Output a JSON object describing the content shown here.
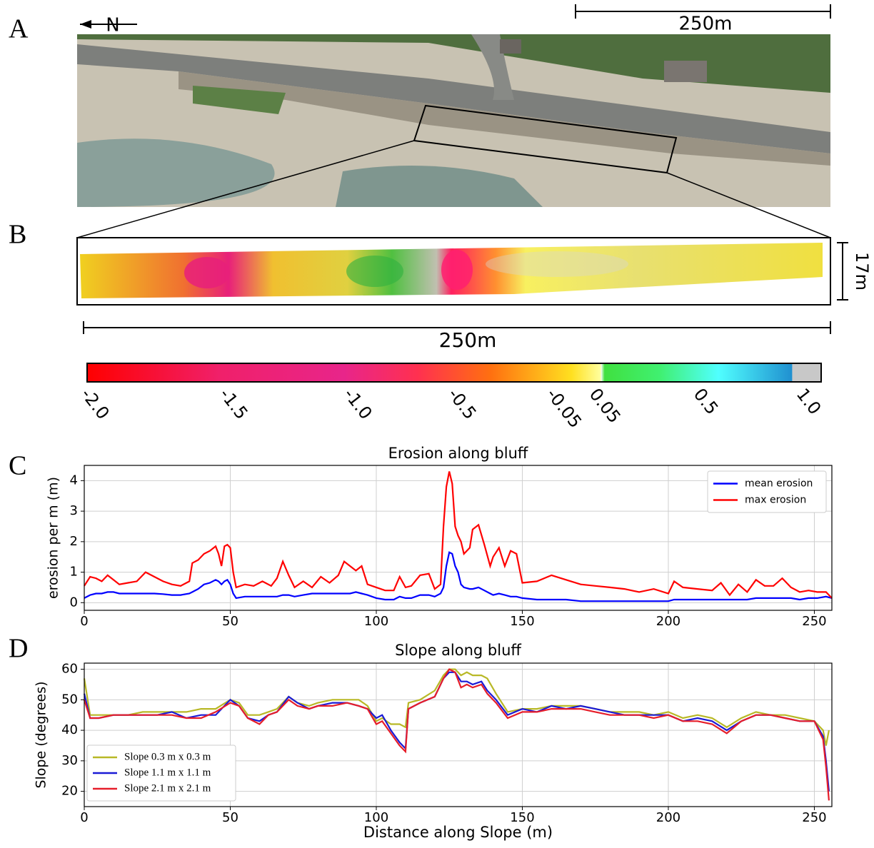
{
  "labels": {
    "a": "A",
    "b": "B",
    "c": "C",
    "d": "D"
  },
  "north": "N",
  "scale_top": "250m",
  "scale_b": "250m",
  "scale_height": "17m",
  "colorbar": {
    "ticks": [
      "-2.0",
      "-1.5",
      "-1.0",
      "-0.5",
      "-0.05",
      "0.05",
      "0.5",
      "1.0"
    ]
  },
  "chart_data": [
    {
      "type": "line",
      "title": "Erosion along bluff",
      "ylabel": "erosion per m (m)",
      "x": [
        0,
        2,
        4,
        6,
        8,
        10,
        12,
        15,
        18,
        21,
        24,
        27,
        30,
        33,
        36,
        37,
        39,
        41,
        43,
        45,
        46,
        47,
        48,
        49,
        50,
        51,
        52,
        55,
        58,
        61,
        64,
        66,
        68,
        70,
        72,
        75,
        78,
        81,
        84,
        87,
        89,
        91,
        93,
        95,
        97,
        100,
        103,
        106,
        108,
        110,
        112,
        115,
        118,
        120,
        122,
        123,
        124,
        125,
        126,
        127,
        128,
        129,
        130,
        132,
        133,
        135,
        137,
        139,
        140,
        142,
        144,
        146,
        148,
        150,
        155,
        160,
        165,
        170,
        175,
        180,
        185,
        190,
        195,
        200,
        202,
        205,
        210,
        215,
        218,
        221,
        224,
        227,
        230,
        233,
        236,
        239,
        242,
        245,
        248,
        251,
        254,
        256
      ],
      "series": [
        {
          "name": "mean erosion",
          "color": "#0000ff",
          "values": [
            0.15,
            0.25,
            0.3,
            0.3,
            0.35,
            0.35,
            0.3,
            0.3,
            0.3,
            0.3,
            0.3,
            0.28,
            0.25,
            0.25,
            0.3,
            0.35,
            0.45,
            0.6,
            0.65,
            0.75,
            0.7,
            0.6,
            0.7,
            0.75,
            0.6,
            0.3,
            0.15,
            0.2,
            0.2,
            0.2,
            0.2,
            0.2,
            0.25,
            0.25,
            0.2,
            0.25,
            0.3,
            0.3,
            0.3,
            0.3,
            0.3,
            0.3,
            0.35,
            0.3,
            0.25,
            0.15,
            0.1,
            0.1,
            0.2,
            0.15,
            0.15,
            0.25,
            0.25,
            0.2,
            0.3,
            0.5,
            1.2,
            1.65,
            1.6,
            1.2,
            1.0,
            0.6,
            0.5,
            0.45,
            0.45,
            0.5,
            0.4,
            0.3,
            0.25,
            0.3,
            0.25,
            0.2,
            0.2,
            0.15,
            0.1,
            0.1,
            0.1,
            0.05,
            0.05,
            0.05,
            0.05,
            0.05,
            0.05,
            0.05,
            0.1,
            0.1,
            0.1,
            0.1,
            0.1,
            0.1,
            0.1,
            0.1,
            0.15,
            0.15,
            0.15,
            0.15,
            0.15,
            0.1,
            0.15,
            0.15,
            0.2,
            0.15
          ]
        },
        {
          "name": "max erosion",
          "color": "#ff0000",
          "values": [
            0.55,
            0.85,
            0.8,
            0.7,
            0.9,
            0.75,
            0.6,
            0.65,
            0.7,
            1.0,
            0.85,
            0.7,
            0.6,
            0.55,
            0.7,
            1.3,
            1.4,
            1.6,
            1.7,
            1.85,
            1.6,
            1.2,
            1.85,
            1.9,
            1.8,
            1.0,
            0.5,
            0.6,
            0.55,
            0.7,
            0.55,
            0.8,
            1.35,
            0.9,
            0.5,
            0.7,
            0.5,
            0.85,
            0.65,
            0.9,
            1.35,
            1.2,
            1.05,
            1.2,
            0.6,
            0.5,
            0.4,
            0.4,
            0.85,
            0.5,
            0.55,
            0.9,
            0.95,
            0.45,
            0.6,
            2.5,
            3.8,
            4.3,
            3.9,
            2.5,
            2.2,
            2.0,
            1.6,
            1.8,
            2.4,
            2.55,
            1.9,
            1.2,
            1.5,
            1.8,
            1.2,
            1.7,
            1.6,
            0.65,
            0.7,
            0.9,
            0.75,
            0.6,
            0.55,
            0.5,
            0.45,
            0.35,
            0.45,
            0.3,
            0.7,
            0.5,
            0.45,
            0.4,
            0.65,
            0.25,
            0.6,
            0.35,
            0.75,
            0.55,
            0.55,
            0.8,
            0.5,
            0.35,
            0.4,
            0.35,
            0.35,
            0.15
          ]
        }
      ],
      "xlim": [
        0,
        256
      ],
      "ylim": [
        -0.25,
        4.5
      ],
      "xticks": [
        0,
        50,
        100,
        150,
        200,
        250
      ],
      "yticks": [
        0,
        1,
        2,
        3,
        4
      ],
      "grid": true,
      "legend": "upper right"
    },
    {
      "type": "line",
      "title": "Slope along bluff",
      "xlabel": "Distance along Slope (m)",
      "ylabel": "Slope (degrees)",
      "x": [
        0,
        2,
        5,
        10,
        15,
        20,
        25,
        30,
        35,
        40,
        45,
        50,
        53,
        56,
        60,
        63,
        66,
        70,
        73,
        77,
        80,
        85,
        90,
        94,
        97,
        100,
        102,
        105,
        108,
        110,
        111,
        115,
        120,
        123,
        125,
        127,
        129,
        131,
        133,
        136,
        138,
        141,
        145,
        150,
        155,
        160,
        165,
        170,
        175,
        180,
        185,
        190,
        195,
        200,
        205,
        210,
        215,
        220,
        225,
        230,
        235,
        240,
        245,
        250,
        253,
        254,
        255
      ],
      "series": [
        {
          "name": "Slope 0.3 m x 0.3 m",
          "color": "#b8b826",
          "values": [
            57,
            45,
            45,
            45,
            45,
            46,
            46,
            46,
            46,
            47,
            47,
            50,
            49,
            45,
            45,
            46,
            47,
            51,
            49,
            48,
            49,
            50,
            50,
            50,
            48,
            43,
            44,
            42,
            42,
            41,
            49,
            50,
            53,
            58,
            60,
            60,
            58,
            59,
            58,
            58,
            57,
            52,
            46,
            47,
            47,
            48,
            48,
            48,
            47,
            46,
            46,
            46,
            45,
            46,
            44,
            45,
            44,
            41,
            44,
            46,
            45,
            45,
            44,
            43,
            40,
            35,
            40
          ]
        },
        {
          "name": "Slope 1.1 m x 1.1 m",
          "color": "#1a1ad6",
          "values": [
            52,
            44,
            44,
            45,
            45,
            45,
            45,
            46,
            44,
            45,
            45,
            50,
            48,
            44,
            43,
            45,
            46,
            51,
            49,
            47,
            48,
            49,
            49,
            48,
            47,
            44,
            45,
            40,
            36,
            34,
            47,
            49,
            51,
            57,
            59,
            59,
            56,
            56,
            55,
            56,
            53,
            50,
            45,
            47,
            46,
            48,
            47,
            48,
            47,
            46,
            45,
            45,
            45,
            45,
            43,
            44,
            43,
            40,
            43,
            45,
            45,
            44,
            43,
            43,
            38,
            30,
            20
          ]
        },
        {
          "name": "Slope 2.1 m x 2.1 m",
          "color": "#e61e2a",
          "values": [
            50,
            44,
            44,
            45,
            45,
            45,
            45,
            45,
            44,
            44,
            46,
            49,
            48,
            44,
            42,
            45,
            46,
            50,
            48,
            47,
            48,
            48,
            49,
            48,
            47,
            42,
            43,
            39,
            35,
            33,
            47,
            49,
            51,
            57,
            60,
            59,
            54,
            55,
            54,
            55,
            52,
            49,
            44,
            46,
            46,
            47,
            47,
            47,
            46,
            45,
            45,
            45,
            44,
            45,
            43,
            43,
            42,
            39,
            43,
            45,
            45,
            44,
            43,
            43,
            37,
            28,
            17
          ]
        }
      ],
      "xlim": [
        0,
        256
      ],
      "ylim": [
        15,
        62
      ],
      "xticks": [
        0,
        50,
        100,
        150,
        200,
        250
      ],
      "yticks": [
        20,
        30,
        40,
        50,
        60
      ],
      "grid": true,
      "legend": "lower left"
    }
  ]
}
